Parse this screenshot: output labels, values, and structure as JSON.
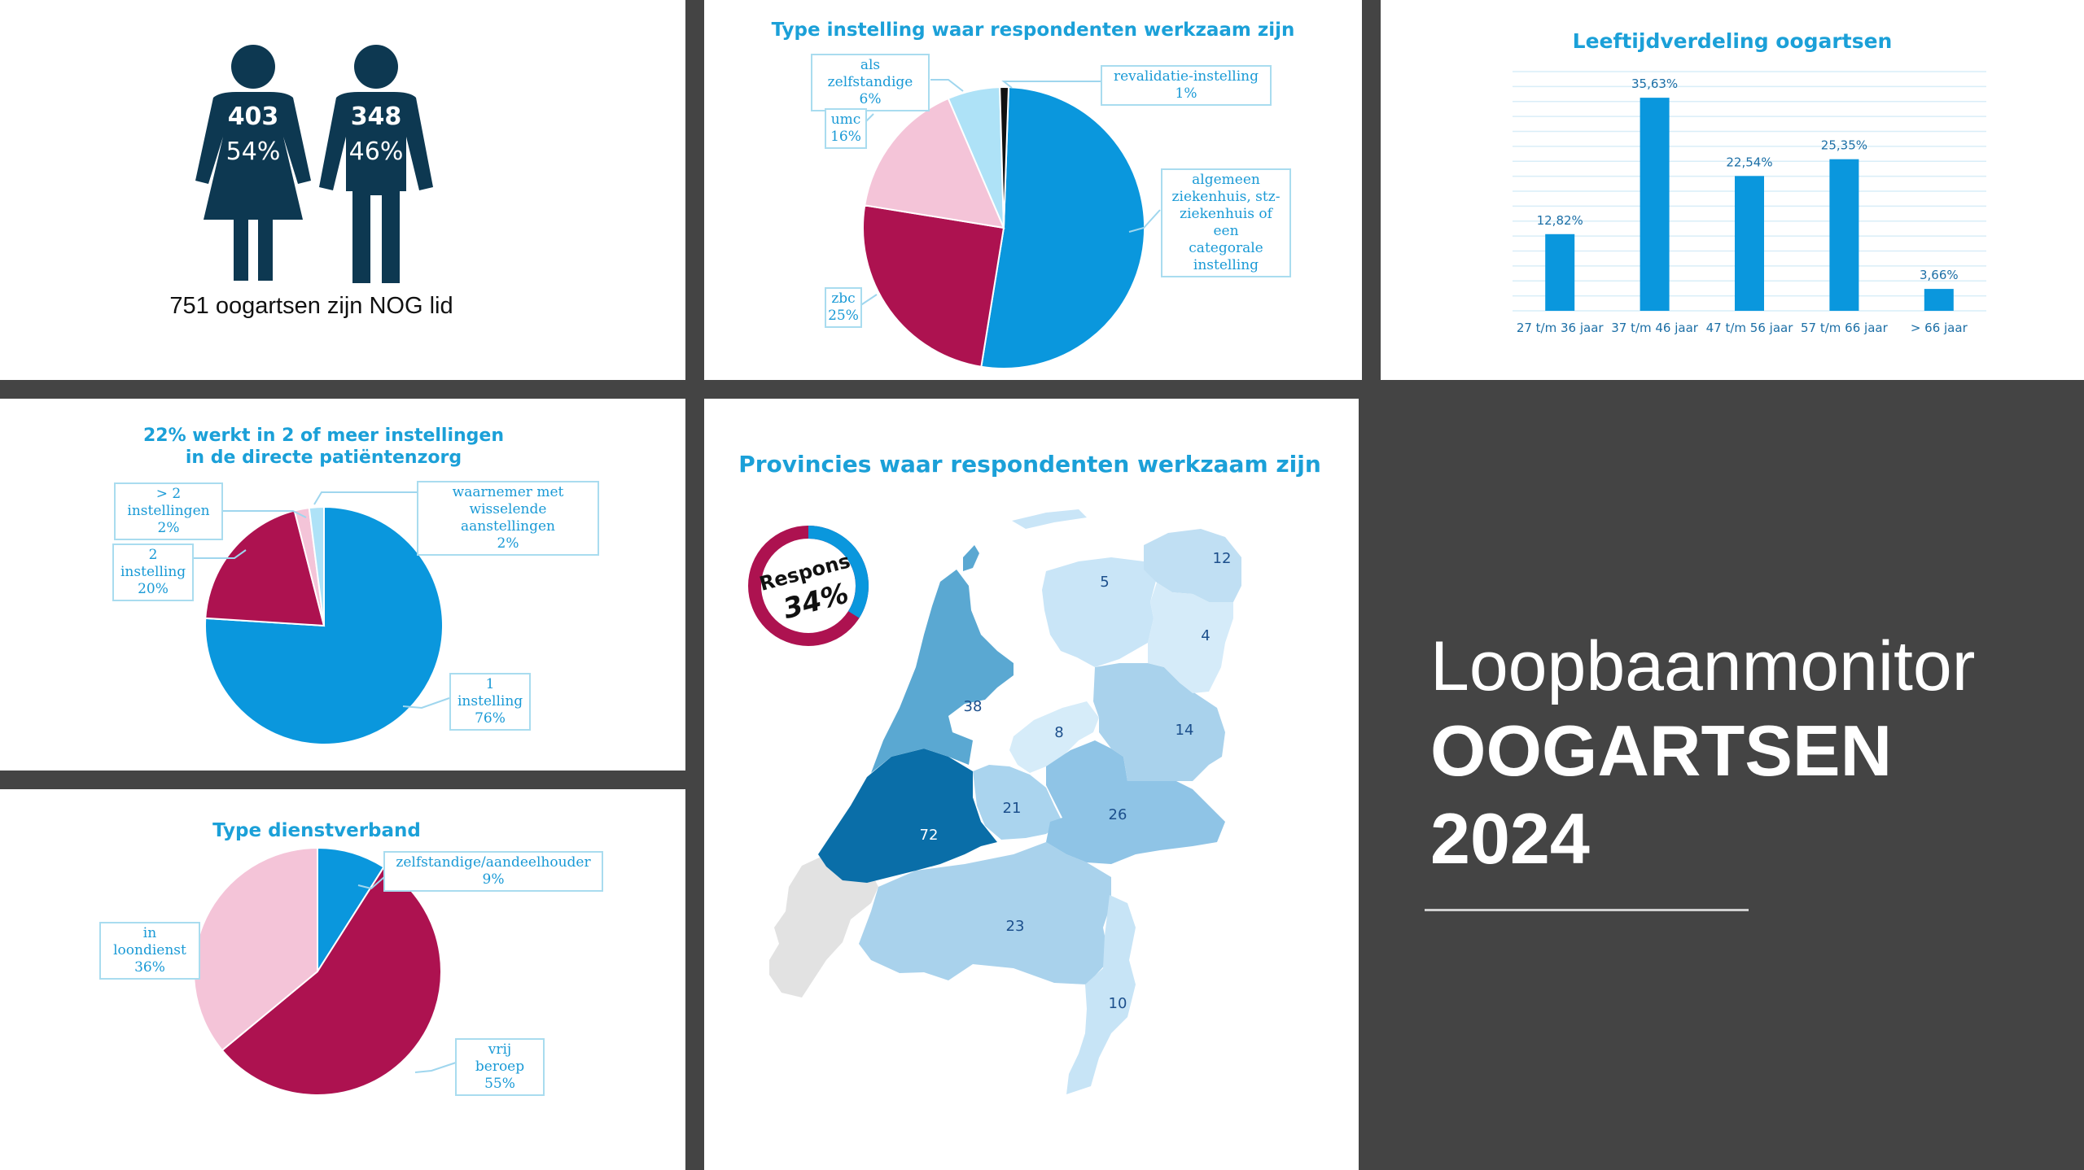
{
  "colors": {
    "blue": "#0a97dd",
    "crimson": "#ad1250",
    "pink": "#f4c4d8",
    "lightblue": "#aee2f7",
    "black": "#111111",
    "navy": "#0d3851",
    "title": "#1ba0d8",
    "dark_bg": "#444444"
  },
  "gender": {
    "female": {
      "count": "403",
      "percent": "54%"
    },
    "male": {
      "count": "348",
      "percent": "46%"
    },
    "caption": "751 oogartsen zijn NOG lid"
  },
  "type_instelling": {
    "title": "Type instelling waar respondenten werkzaam zijn",
    "labels": {
      "zelfstandige": [
        "als zelfstandige",
        "6%"
      ],
      "revalidatie": [
        "revalidatie-instelling",
        "1%"
      ],
      "umc": [
        "umc",
        "16%"
      ],
      "algemeen": [
        "algemeen",
        "ziekenhuis, stz-",
        "ziekenhuis of een",
        "categorale",
        "instelling"
      ],
      "zbc": [
        "zbc",
        "25%"
      ]
    }
  },
  "leeftijd": {
    "title": "Leeftijdverdeling oogartsen"
  },
  "instellingen": {
    "title_line1": "22% werkt in 2 of meer instellingen",
    "title_line2": "in de directe patiëntenzorg",
    "labels": {
      "meer2": [
        "> 2 instellingen",
        "2%"
      ],
      "waarnemer": [
        "waarnemer met",
        "wisselende aanstellingen",
        "2%"
      ],
      "twee": [
        "2 instelling",
        "20%"
      ],
      "een": [
        "1 instelling",
        "76%"
      ]
    }
  },
  "dienstverband": {
    "title": "Type dienstverband",
    "labels": {
      "zelfstandig": [
        "zelfstandige/aandeelhouder",
        "9%"
      ],
      "loondienst": [
        "in loondienst",
        "36%"
      ],
      "vrij": [
        "vrij beroep",
        "55%"
      ]
    }
  },
  "provincies": {
    "title": "Provincies waar respondenten werkzaam zijn",
    "respons_label": "Respons",
    "respons_value": "34%",
    "respons_fraction": 0.34,
    "values": {
      "groningen": "12",
      "friesland": "5",
      "drenthe": "4",
      "noord_holland": "38",
      "flevoland": "8",
      "overijssel": "14",
      "utrecht": "21",
      "gelderland": "26",
      "zuid_holland": "72",
      "noord_brabant": "23",
      "limburg": "10"
    }
  },
  "hero": {
    "line1": "Loopbaanmonitor",
    "line2": "OOGARTSEN",
    "line3": "2024"
  },
  "chart_data": [
    {
      "type": "pie",
      "title": "Type instelling waar respondenten werkzaam zijn",
      "categories": [
        "algemeen ziekenhuis, stz-ziekenhuis of een categorale instelling",
        "zbc",
        "umc",
        "als zelfstandige",
        "revalidatie-instelling"
      ],
      "values": [
        52,
        25,
        16,
        6,
        1
      ],
      "colors": [
        "#0a97dd",
        "#ad1250",
        "#f4c4d8",
        "#aee2f7",
        "#111111"
      ]
    },
    {
      "type": "bar",
      "title": "Leeftijdverdeling oogartsen",
      "categories": [
        "27 t/m 36 jaar",
        "37 t/m 46 jaar",
        "47 t/m 56 jaar",
        "57 t/m 66 jaar",
        "> 66 jaar"
      ],
      "values": [
        12.82,
        35.63,
        22.54,
        25.35,
        3.66
      ],
      "value_labels": [
        "12,82%",
        "35,63%",
        "22,54%",
        "25,35%",
        "3,66%"
      ],
      "ylim": [
        0,
        40
      ],
      "grid": true
    },
    {
      "type": "pie",
      "title": "22% werkt in 2 of meer instellingen in de directe patiëntenzorg",
      "categories": [
        "1 instelling",
        "2 instelling",
        "> 2 instellingen",
        "waarnemer met wisselende aanstellingen"
      ],
      "values": [
        76,
        20,
        2,
        2
      ],
      "colors": [
        "#0a97dd",
        "#ad1250",
        "#f4c4d8",
        "#aee2f7"
      ]
    },
    {
      "type": "pie",
      "title": "Type dienstverband",
      "categories": [
        "zelfstandige/aandeelhouder",
        "vrij beroep",
        "in loondienst"
      ],
      "values": [
        9,
        55,
        36
      ],
      "colors": [
        "#0a97dd",
        "#ad1250",
        "#f4c4d8"
      ]
    }
  ]
}
